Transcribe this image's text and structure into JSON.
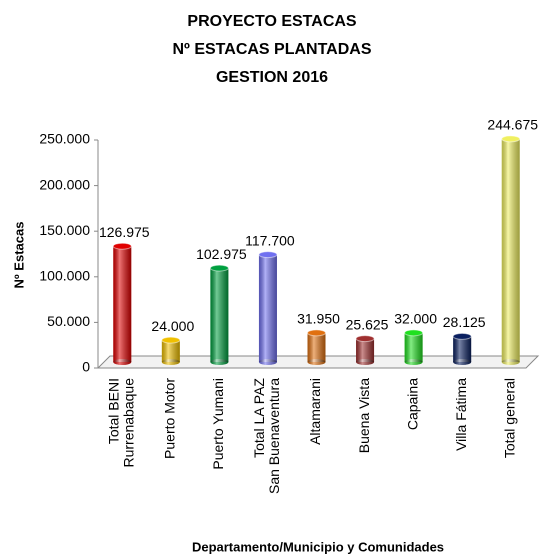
{
  "chart_data": {
    "type": "bar",
    "title": [
      "PROYECTO ESTACAS",
      "Nº ESTACAS PLANTADAS",
      "GESTION 2016"
    ],
    "ylabel": "Nº Estacas",
    "xlabel": "Departamento/Municipio y Comunidades",
    "categories": [
      [
        "Total BENI",
        "Rurrenabaque"
      ],
      [
        "Puerto Motor"
      ],
      [
        "Puerto Yumani"
      ],
      [
        "Total LA PAZ",
        "San Buenaventura"
      ],
      [
        "Altamarani"
      ],
      [
        "Buena Vista"
      ],
      [
        "Capaina"
      ],
      [
        "Villa Fátima"
      ],
      [
        "Total general"
      ]
    ],
    "values": [
      126975,
      24000,
      102975,
      117700,
      31950,
      25625,
      32000,
      28125,
      244675
    ],
    "value_labels": [
      "126.975",
      "24.000",
      "102.975",
      "117.700",
      "31.950",
      "25.625",
      "32.000",
      "28.125",
      "244.675"
    ],
    "colors": [
      "#e00000",
      "#f0c000",
      "#00a040",
      "#7070f0",
      "#e07010",
      "#a03030",
      "#20e020",
      "#0a2060",
      "#f0f060"
    ],
    "ylim": [
      0,
      250000
    ],
    "yticks": [
      0,
      {
        "value": 50000,
        "label": "50.000"
      },
      {
        "value": 100000,
        "label": "100.000"
      },
      {
        "value": 150000,
        "label": "150.000"
      },
      {
        "value": 200000,
        "label": "200.000"
      },
      {
        "value": 250000,
        "label": "250.000"
      }
    ]
  }
}
